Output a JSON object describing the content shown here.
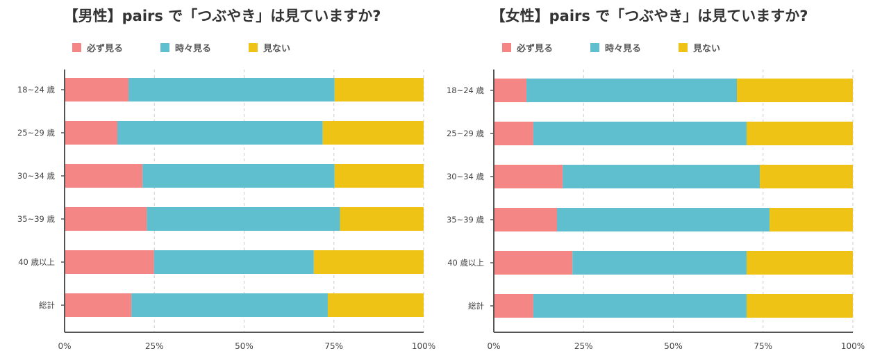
{
  "colors": {
    "always": "#f58686",
    "sometimes": "#5fbfcf",
    "never": "#efc315",
    "axis": "#555555",
    "grid": "#cccccc"
  },
  "legend": [
    "必ず見る",
    "時々見る",
    "見ない"
  ],
  "chart_data": [
    {
      "type": "bar",
      "orientation": "horizontal",
      "stacked": true,
      "title": "【男性】pairs で「つぶやき」は見ていますか?",
      "categories": [
        "18~24 歳",
        "25~29 歳",
        "30~34 歳",
        "35~39 歳",
        "40 歳以上",
        "総計"
      ],
      "series": [
        {
          "name": "必ず見る",
          "values": [
            17.8,
            14.7,
            21.7,
            22.9,
            24.9,
            18.6
          ]
        },
        {
          "name": "時々見る",
          "values": [
            57.4,
            57.2,
            53.5,
            53.8,
            44.5,
            54.7
          ]
        },
        {
          "name": "見ない",
          "values": [
            24.8,
            28.1,
            24.8,
            23.3,
            30.6,
            26.7
          ]
        }
      ],
      "xlim": [
        0,
        100
      ],
      "xticks": [
        "0%",
        "25%",
        "50%",
        "75%",
        "100%"
      ],
      "grid": "vertical dashed",
      "legend": "top-left"
    },
    {
      "type": "bar",
      "orientation": "horizontal",
      "stacked": true,
      "title": "【女性】pairs で「つぶやき」は見ていますか?",
      "categories": [
        "18~24 歳",
        "25~29 歳",
        "30~34 歳",
        "35~39 歳",
        "40 歳以上",
        "総計"
      ],
      "series": [
        {
          "name": "必ず見る",
          "values": [
            9.1,
            11.0,
            19.2,
            17.6,
            21.9,
            11.0
          ]
        },
        {
          "name": "時々見る",
          "values": [
            58.6,
            59.4,
            54.9,
            59.2,
            48.5,
            59.4
          ]
        },
        {
          "name": "見ない",
          "values": [
            32.3,
            29.6,
            25.9,
            23.2,
            29.6,
            29.6
          ]
        }
      ],
      "xlim": [
        0,
        100
      ],
      "xticks": [
        "0%",
        "25%",
        "50%",
        "75%",
        "100%"
      ],
      "grid": "vertical dashed",
      "legend": "top-left"
    }
  ]
}
